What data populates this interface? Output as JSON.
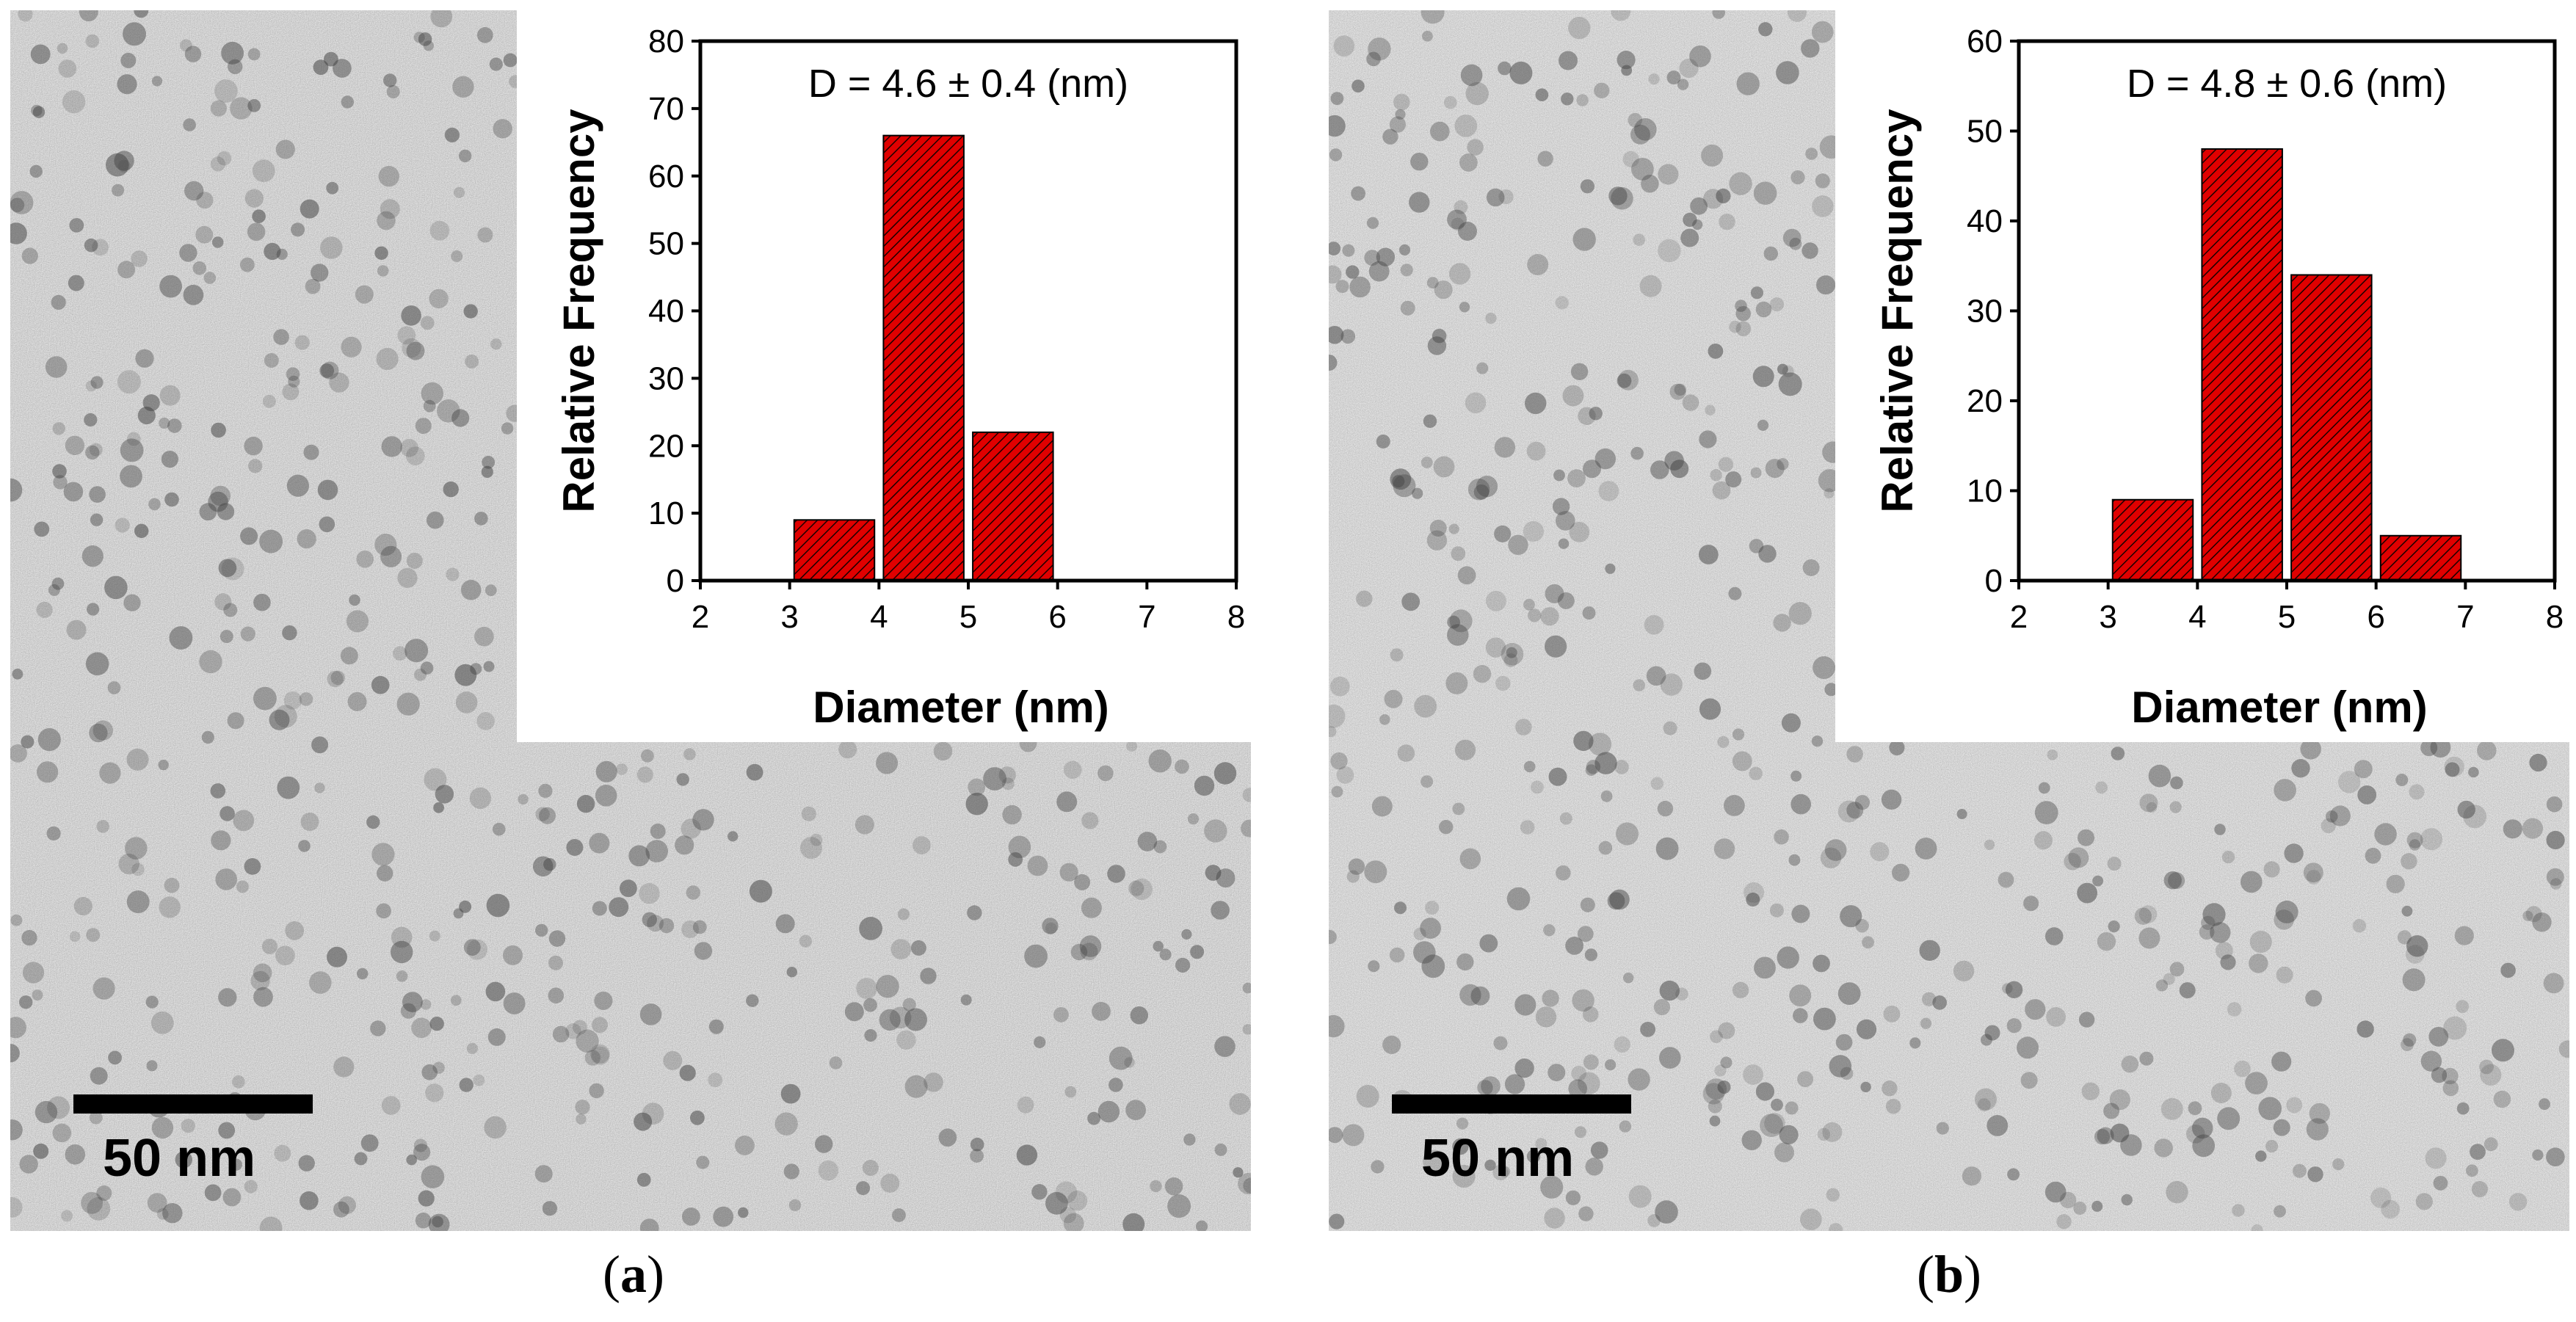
{
  "panels": [
    {
      "label": "a",
      "scale_bar": "50 nm",
      "chart_data": {
        "type": "bar",
        "annotation": "D = 4.6 ± 0.4 (nm)",
        "xlabel": "Diameter (nm)",
        "ylabel": "Relative Frequency",
        "xlim": [
          2,
          8
        ],
        "ylim": [
          0,
          80
        ],
        "xticks": [
          2,
          3,
          4,
          5,
          6,
          7,
          8
        ],
        "yticks": [
          0,
          10,
          20,
          30,
          40,
          50,
          60,
          70,
          80
        ],
        "bin_width": 0.9,
        "series": [
          {
            "x": [
              3.5,
              4.5,
              5.5
            ],
            "values": [
              9,
              66,
              22
            ]
          }
        ],
        "bar_color": "#e00000",
        "bar_pattern": "diagonal-hatch",
        "grid": false
      }
    },
    {
      "label": "b",
      "scale_bar": "50 nm",
      "chart_data": {
        "type": "bar",
        "annotation": "D = 4.8 ± 0.6 (nm)",
        "xlabel": "Diameter (nm)",
        "ylabel": "Relative Frequency",
        "xlim": [
          2,
          8
        ],
        "ylim": [
          0,
          60
        ],
        "xticks": [
          2,
          3,
          4,
          5,
          6,
          7,
          8
        ],
        "yticks": [
          0,
          10,
          20,
          30,
          40,
          50,
          60
        ],
        "bin_width": 0.9,
        "series": [
          {
            "x": [
              3.5,
              4.5,
              5.5,
              6.5
            ],
            "values": [
              9,
              48,
              34,
              5
            ]
          }
        ],
        "bar_color": "#e00000",
        "bar_pattern": "diagonal-hatch",
        "grid": false
      }
    }
  ]
}
